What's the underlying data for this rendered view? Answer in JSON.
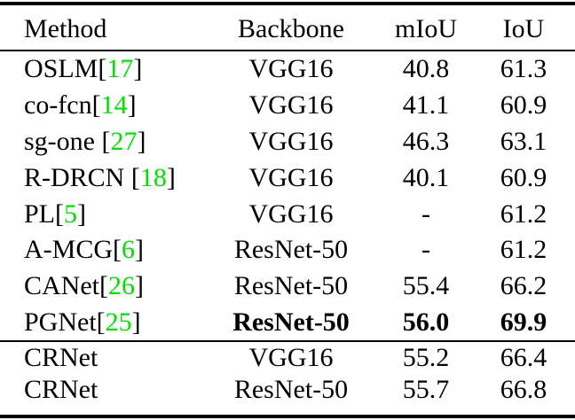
{
  "colors": {
    "background": "#ffffff",
    "text": "#000000",
    "citation_green": "#00e000"
  },
  "table": {
    "headers": {
      "method": "Method",
      "backbone": "Backbone",
      "miou": "mIoU",
      "iou": "IoU"
    },
    "citation_open_bracket": "[",
    "citation_close_bracket": "]",
    "rows": [
      {
        "section": 1,
        "method": "OSLM",
        "ref": "17",
        "backbone": "VGG16",
        "miou": "40.8",
        "iou": "61.3",
        "bold": false
      },
      {
        "section": 1,
        "method": "co-fcn",
        "ref": "14",
        "backbone": "VGG16",
        "miou": "41.1",
        "iou": "60.9",
        "bold": false
      },
      {
        "section": 1,
        "method": "sg-one ",
        "ref": "27",
        "backbone": "VGG16",
        "miou": "46.3",
        "iou": "63.1",
        "bold": false
      },
      {
        "section": 1,
        "method": "R-DRCN ",
        "ref": "18",
        "backbone": "VGG16",
        "miou": "40.1",
        "iou": "60.9",
        "bold": false
      },
      {
        "section": 1,
        "method": "PL",
        "ref": "5",
        "backbone": "VGG16",
        "miou": "-",
        "iou": "61.2",
        "bold": false
      },
      {
        "section": 1,
        "method": "A-MCG",
        "ref": "6",
        "backbone": "ResNet-50",
        "miou": "-",
        "iou": "61.2",
        "bold": false
      },
      {
        "section": 1,
        "method": "CANet",
        "ref": "26",
        "backbone": "ResNet-50",
        "miou": "55.4",
        "iou": "66.2",
        "bold": false
      },
      {
        "section": 1,
        "method": "PGNet",
        "ref": "25",
        "backbone": "ResNet-50",
        "miou": "56.0",
        "iou": "69.9",
        "bold": true
      },
      {
        "section": 2,
        "method": "CRNet",
        "ref": null,
        "backbone": "VGG16",
        "miou": "55.2",
        "iou": "66.4",
        "bold": false
      },
      {
        "section": 2,
        "method": "CRNet",
        "ref": null,
        "backbone": "ResNet-50",
        "miou": "55.7",
        "iou": "66.8",
        "bold": false
      }
    ]
  }
}
